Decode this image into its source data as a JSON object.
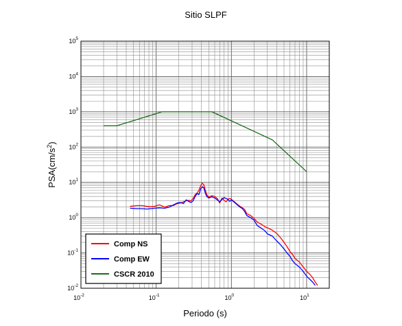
{
  "chart_data": {
    "type": "line",
    "title": "Sitio SLPF",
    "xlabel": "Periodo (s)",
    "ylabel_base": "PSA(cm/s",
    "ylabel_exp": "2",
    "ylabel_close": ")",
    "xscale": "log",
    "yscale": "log",
    "xlim": [
      0.01,
      20
    ],
    "ylim": [
      0.01,
      100000
    ],
    "grid": true,
    "legend_position": "bottom-left",
    "x_ticks": [
      {
        "base": "10",
        "exp": "-2"
      },
      {
        "base": "10",
        "exp": "-1"
      },
      {
        "base": "10",
        "exp": "0"
      },
      {
        "base": "10",
        "exp": "1"
      }
    ],
    "y_ticks": [
      {
        "base": "10",
        "exp": "-2"
      },
      {
        "base": "10",
        "exp": "-1"
      },
      {
        "base": "10",
        "exp": "0"
      },
      {
        "base": "10",
        "exp": "1"
      },
      {
        "base": "10",
        "exp": "2"
      },
      {
        "base": "10",
        "exp": "3"
      },
      {
        "base": "10",
        "exp": "4"
      },
      {
        "base": "10",
        "exp": "5"
      }
    ],
    "series": [
      {
        "name": "Comp NS",
        "color": "#ff0000",
        "x": [
          0.045,
          0.055,
          0.065,
          0.075,
          0.085,
          0.095,
          0.11,
          0.13,
          0.15,
          0.17,
          0.19,
          0.21,
          0.23,
          0.25,
          0.27,
          0.29,
          0.31,
          0.33,
          0.35,
          0.37,
          0.39,
          0.41,
          0.43,
          0.45,
          0.47,
          0.5,
          0.55,
          0.6,
          0.65,
          0.7,
          0.75,
          0.8,
          0.85,
          0.9,
          0.95,
          1.0,
          1.1,
          1.2,
          1.3,
          1.4,
          1.5,
          1.6,
          1.8,
          2.0,
          2.2,
          2.5,
          2.8,
          3.0,
          3.5,
          4.0,
          4.5,
          5.0,
          5.5,
          6.0,
          6.5,
          7.0,
          8.0,
          9.0,
          10.0,
          11.0,
          12.0,
          13.0,
          14.0
        ],
        "y": [
          2.1,
          2.2,
          2.2,
          2.1,
          2.05,
          2.1,
          2.3,
          2.0,
          2.2,
          2.2,
          2.5,
          2.6,
          2.8,
          3.0,
          3.1,
          3.0,
          3.5,
          4.5,
          5.0,
          6.0,
          8.0,
          9.5,
          8.5,
          6.0,
          4.5,
          3.8,
          4.2,
          4.0,
          3.5,
          2.6,
          3.6,
          3.1,
          2.8,
          3.3,
          3.5,
          3.3,
          2.8,
          2.4,
          2.1,
          1.9,
          1.7,
          1.3,
          1.15,
          0.95,
          0.75,
          0.65,
          0.55,
          0.52,
          0.44,
          0.36,
          0.27,
          0.2,
          0.15,
          0.11,
          0.09,
          0.07,
          0.055,
          0.04,
          0.03,
          0.025,
          0.02,
          0.015,
          0.012
        ]
      },
      {
        "name": "Comp EW",
        "color": "#0000ff",
        "x": [
          0.045,
          0.055,
          0.065,
          0.075,
          0.085,
          0.095,
          0.11,
          0.13,
          0.15,
          0.17,
          0.19,
          0.21,
          0.23,
          0.25,
          0.27,
          0.29,
          0.31,
          0.33,
          0.35,
          0.37,
          0.39,
          0.41,
          0.43,
          0.45,
          0.47,
          0.5,
          0.55,
          0.6,
          0.65,
          0.7,
          0.75,
          0.8,
          0.85,
          0.9,
          0.95,
          1.0,
          1.1,
          1.2,
          1.3,
          1.4,
          1.5,
          1.6,
          1.8,
          2.0,
          2.2,
          2.5,
          2.8,
          3.0,
          3.5,
          4.0,
          4.5,
          5.0,
          5.5,
          6.0,
          6.5,
          7.0,
          8.0,
          9.0,
          10.0,
          11.0,
          12.0,
          13.0
        ],
        "y": [
          1.85,
          1.8,
          1.8,
          1.75,
          1.8,
          1.85,
          1.9,
          1.85,
          2.0,
          2.3,
          2.6,
          2.7,
          2.5,
          3.2,
          2.9,
          2.7,
          3.0,
          4.0,
          4.8,
          4.5,
          6.5,
          7.5,
          7.0,
          5.0,
          4.0,
          3.6,
          3.9,
          3.6,
          3.2,
          2.8,
          3.3,
          3.7,
          3.5,
          3.3,
          2.9,
          3.2,
          2.7,
          2.3,
          2.0,
          1.8,
          1.5,
          1.15,
          1.0,
          0.85,
          0.6,
          0.5,
          0.42,
          0.35,
          0.3,
          0.22,
          0.17,
          0.13,
          0.1,
          0.08,
          0.06,
          0.05,
          0.04,
          0.03,
          0.022,
          0.018,
          0.015,
          0.012
        ]
      },
      {
        "name": "CSCR 2010",
        "color": "#1a6b1a",
        "x": [
          0.02,
          0.03,
          0.12,
          0.55,
          3.5,
          10.0
        ],
        "y": [
          400,
          400,
          1000,
          1000,
          160,
          20
        ]
      }
    ]
  }
}
